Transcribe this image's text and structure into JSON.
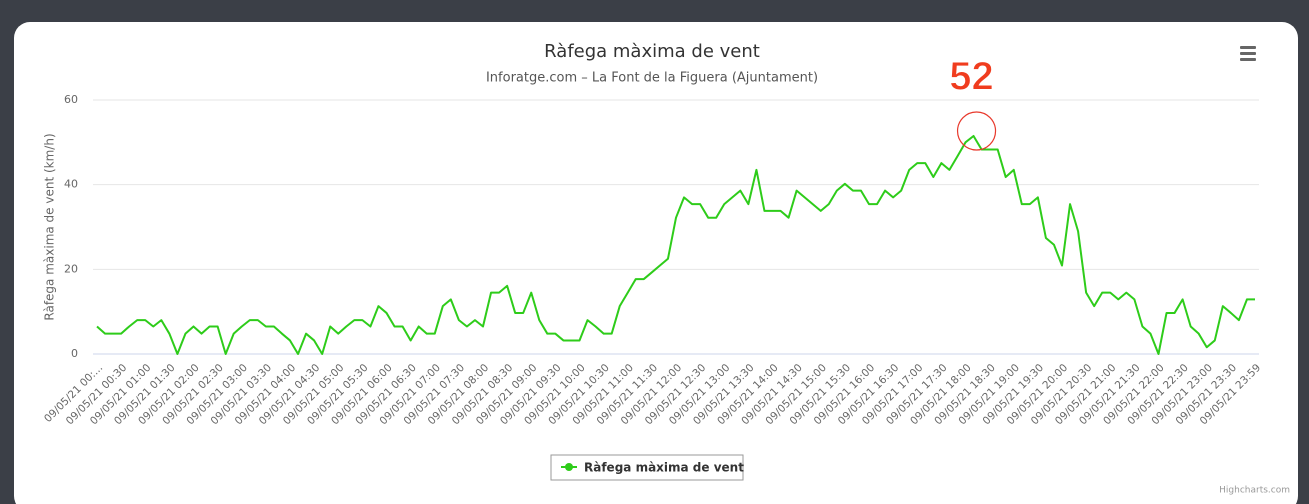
{
  "chart_data": {
    "type": "line",
    "title": "Ràfega màxima de vent",
    "subtitle": "Inforatge.com – La Font de la Figuera (Ajuntament)",
    "y_label": "Ràfega màxima de vent (km/h)",
    "annotation": "52",
    "credits": "Highcharts.com",
    "categories": [
      "09/05/21 00:...",
      null,
      null,
      "09/05/21 00:30",
      null,
      null,
      "09/05/21 01:00",
      null,
      null,
      "09/05/21 01:30",
      null,
      null,
      "09/05/21 02:00",
      null,
      null,
      "09/05/21 02:30",
      null,
      null,
      "09/05/21 03:00",
      null,
      null,
      "09/05/21 03:30",
      null,
      null,
      "09/05/21 04:00",
      null,
      null,
      "09/05/21 04:30",
      null,
      null,
      "09/05/21 05:00",
      null,
      null,
      "09/05/21 05:30",
      null,
      null,
      "09/05/21 06:00",
      null,
      null,
      "09/05/21 06:30",
      null,
      null,
      "09/05/21 07:00",
      null,
      null,
      "09/05/21 07:30",
      null,
      null,
      "09/05/21 08:00",
      null,
      null,
      "09/05/21 08:30",
      null,
      null,
      "09/05/21 09:00",
      null,
      null,
      "09/05/21 09:30",
      null,
      null,
      "09/05/21 10:00",
      null,
      null,
      "09/05/21 10:30",
      null,
      null,
      "09/05/21 11:00",
      null,
      null,
      "09/05/21 11:30",
      null,
      null,
      "09/05/21 12:00",
      null,
      null,
      "09/05/21 12:30",
      null,
      null,
      "09/05/21 13:00",
      null,
      null,
      "09/05/21 13:30",
      null,
      null,
      "09/05/21 14:00",
      null,
      null,
      "09/05/21 14:30",
      null,
      null,
      "09/05/21 15:00",
      null,
      null,
      "09/05/21 15:30",
      null,
      null,
      "09/05/21 16:00",
      null,
      null,
      "09/05/21 16:30",
      null,
      null,
      "09/05/21 17:00",
      null,
      null,
      "09/05/21 17:30",
      null,
      null,
      "09/05/21 18:00",
      null,
      null,
      "09/05/21 18:30",
      null,
      null,
      "09/05/21 19:00",
      null,
      null,
      "09/05/21 19:30",
      null,
      null,
      "09/05/21 20:00",
      null,
      null,
      "09/05/21 20:30",
      null,
      null,
      "09/05/21 21:00",
      null,
      null,
      "09/05/21 21:30",
      null,
      null,
      "09/05/21 22:00",
      null,
      null,
      "09/05/21 22:30",
      null,
      null,
      "09/05/21 23:00",
      null,
      null,
      "09/05/21 23:30",
      null,
      null,
      "09/05/21 23:59"
    ],
    "series": [
      {
        "name": "Ràfega màxima de vent",
        "color": "#2ecc1a",
        "values": [
          6.5,
          4.8,
          4.8,
          4.8,
          6.5,
          8,
          8,
          6.5,
          8,
          4.8,
          0,
          4.8,
          6.5,
          4.8,
          6.5,
          6.5,
          0,
          4.8,
          6.5,
          8,
          8,
          6.5,
          6.5,
          4.8,
          3.2,
          0,
          4.8,
          3.2,
          0,
          6.5,
          4.8,
          6.5,
          8,
          8,
          6.5,
          11.3,
          9.7,
          6.5,
          6.5,
          3.2,
          6.5,
          4.8,
          4.8,
          11.3,
          12.9,
          8,
          6.5,
          8,
          6.5,
          14.5,
          14.5,
          16.1,
          9.7,
          9.7,
          14.5,
          8,
          4.8,
          4.8,
          3.2,
          3.2,
          3.2,
          8,
          6.5,
          4.8,
          4.8,
          11.3,
          14.5,
          17.7,
          17.7,
          19.3,
          20.9,
          22.5,
          32.2,
          37,
          35.4,
          35.4,
          32.2,
          32.2,
          35.4,
          37,
          38.6,
          35.4,
          43.5,
          33.8,
          33.8,
          33.8,
          32.2,
          38.6,
          37,
          35.4,
          33.8,
          35.4,
          38.6,
          40.2,
          38.6,
          38.6,
          35.4,
          35.4,
          38.6,
          37,
          38.6,
          43.5,
          45.1,
          45.1,
          41.8,
          45.1,
          43.5,
          46.7,
          50,
          51.5,
          48.3,
          48.3,
          48.3,
          41.8,
          43.5,
          35.4,
          35.4,
          37,
          27.4,
          25.8,
          20.9,
          35.4,
          29,
          14.5,
          11.3,
          14.5,
          14.5,
          12.9,
          14.5,
          12.9,
          6.5,
          4.8,
          0,
          9.7,
          9.7,
          12.9,
          6.5,
          4.8,
          1.6,
          3.2,
          11.3,
          9.7,
          8,
          12.9,
          12.9
        ]
      }
    ],
    "ylim": [
      0,
      60
    ],
    "yticks": [
      0,
      20,
      40,
      60
    ],
    "grid": true
  }
}
